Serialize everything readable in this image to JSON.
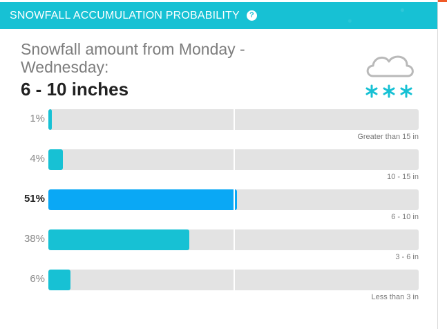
{
  "header": {
    "title": "SNOWFALL ACCUMULATION PROBABILITY",
    "help_icon": "?"
  },
  "forecast": {
    "subtitle": "Snowfall amount from Monday - Wednesday:",
    "amount": "6 - 10 inches",
    "icon": "cloud-snow-icon"
  },
  "colors": {
    "header": "#17c1d4",
    "bar": "#17c1d4",
    "bar_active": "#0aa8f5",
    "track": "#e3e3e3",
    "accent_stripe": "#f05a28"
  },
  "rows": [
    {
      "percent_label": "1%",
      "probability": 1,
      "range_label": "Greater than 15 in",
      "active": false
    },
    {
      "percent_label": "4%",
      "probability": 4,
      "range_label": "10 - 15 in",
      "active": false
    },
    {
      "percent_label": "51%",
      "probability": 51,
      "range_label": "6 - 10 in",
      "active": true
    },
    {
      "percent_label": "38%",
      "probability": 38,
      "range_label": "3 - 6 in",
      "active": false
    },
    {
      "percent_label": "6%",
      "probability": 6,
      "range_label": "Less than 3 in",
      "active": false
    }
  ]
}
